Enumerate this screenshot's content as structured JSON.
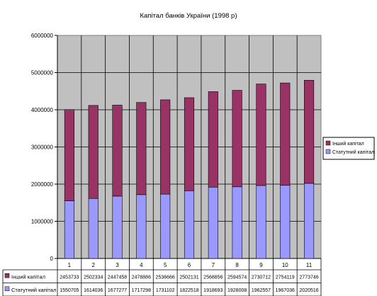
{
  "chart_data": {
    "type": "bar",
    "stacked": true,
    "title": "Капітал банків України (1998 р)",
    "categories": [
      "1",
      "2",
      "3",
      "4",
      "5",
      "6",
      "7",
      "8",
      "9",
      "10",
      "11"
    ],
    "ylim": [
      0,
      6000000
    ],
    "yticks": [
      "0",
      "1000000",
      "2000000",
      "3000000",
      "4000000",
      "5000000",
      "6000000"
    ],
    "grid": true,
    "legend_position": "right",
    "series": [
      {
        "name": "Статутний капітал",
        "color": "#9999ff",
        "values": [
          1550705,
          1614036,
          1677277,
          1717298,
          1731102,
          1822518,
          1918693,
          1928008,
          1962557,
          1967036,
          2020516
        ],
        "labels": [
          "1550705",
          "1614036",
          "1677277",
          "1717298",
          "1731102",
          "1822518",
          "1918693",
          "1928008",
          "1962557",
          "1967036",
          "2020516"
        ]
      },
      {
        "name": "Інший капітал",
        "color": "#993366",
        "values": [
          2453733,
          2502334,
          2447458,
          2478886,
          2536666,
          2502131,
          2568856,
          2594574,
          2730712,
          2754119,
          2773746
        ],
        "labels": [
          "2453733",
          "2502334",
          "2447458",
          "2478886",
          "2536666",
          "2502131",
          "2568856",
          "2594574",
          "2730712",
          "2754119",
          "2773746"
        ]
      }
    ],
    "table_row_order": [
      1,
      0
    ],
    "legend_order": [
      1,
      0
    ]
  }
}
